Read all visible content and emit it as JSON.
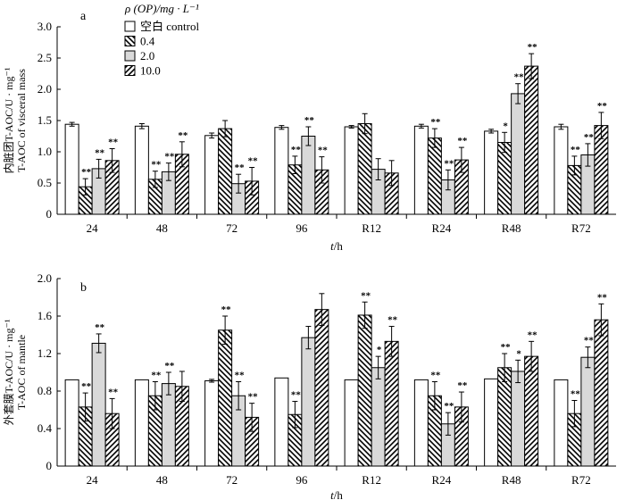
{
  "legend": {
    "title": "ρ (OP)/mg · L⁻¹",
    "items": [
      {
        "label": "空白 control",
        "pattern": "white"
      },
      {
        "label": "0.4",
        "pattern": "hatch-back"
      },
      {
        "label": "2.0",
        "pattern": "gray"
      },
      {
        "label": "10.0",
        "pattern": "hatch-fwd"
      }
    ]
  },
  "xlabel": "t/h",
  "colors": {
    "gray_fill": "#d9d9d9",
    "stroke": "#000000",
    "background": "#ffffff"
  },
  "chart_data": [
    {
      "type": "bar",
      "panel": "a",
      "ylabel_line1": "内脏团T-AOC/U · mg⁻¹",
      "ylabel_line2": "T-AOC of visceral mass",
      "xlabel": "t/h",
      "categories": [
        "24",
        "48",
        "72",
        "96",
        "R12",
        "R24",
        "R48",
        "R72"
      ],
      "ylim": [
        0,
        3.0
      ],
      "yticks": [
        "0",
        "0.5",
        "1.0",
        "1.5",
        "2.0",
        "2.5",
        "3.0"
      ],
      "series": [
        {
          "name": "空白 control",
          "values": [
            1.44,
            1.41,
            1.26,
            1.39,
            1.4,
            1.41,
            1.33,
            1.4
          ],
          "errors": [
            0.03,
            0.04,
            0.04,
            0.03,
            0.02,
            0.03,
            0.03,
            0.04
          ],
          "sig": [
            "",
            "",
            "",
            "",
            "",
            "",
            "",
            ""
          ]
        },
        {
          "name": "0.4",
          "values": [
            0.44,
            0.56,
            1.37,
            0.79,
            1.45,
            1.22,
            1.15,
            0.78
          ],
          "errors": [
            0.13,
            0.13,
            0.13,
            0.14,
            0.16,
            0.15,
            0.16,
            0.15
          ],
          "sig": [
            "**",
            "**",
            "",
            "**",
            "",
            "**",
            "*",
            "**"
          ]
        },
        {
          "name": "2.0",
          "values": [
            0.73,
            0.68,
            0.49,
            1.25,
            0.72,
            0.55,
            1.93,
            0.95
          ],
          "errors": [
            0.15,
            0.14,
            0.15,
            0.15,
            0.17,
            0.16,
            0.16,
            0.18
          ],
          "sig": [
            "**",
            "**",
            "**",
            "**",
            "",
            "**",
            "**",
            "**"
          ]
        },
        {
          "name": "10.0",
          "values": [
            0.86,
            0.96,
            0.53,
            0.71,
            0.66,
            0.87,
            2.37,
            1.42
          ],
          "errors": [
            0.19,
            0.2,
            0.22,
            0.21,
            0.2,
            0.2,
            0.2,
            0.21
          ],
          "sig": [
            "**",
            "**",
            "**",
            "**",
            "",
            "**",
            "**",
            "**"
          ]
        }
      ]
    },
    {
      "type": "bar",
      "panel": "b",
      "ylabel_line1": "外套膜T-AOC/U · mg⁻¹",
      "ylabel_line2": "T-AOC of mantle",
      "xlabel": "t/h",
      "categories": [
        "24",
        "48",
        "72",
        "96",
        "R12",
        "R24",
        "R48",
        "R72"
      ],
      "ylim": [
        0,
        2.0
      ],
      "yticks": [
        "0",
        "0.4",
        "0.8",
        "1.2",
        "1.6",
        "2.0"
      ],
      "series": [
        {
          "name": "空白 control",
          "values": [
            0.92,
            0.92,
            0.91,
            0.94,
            0.92,
            0.92,
            0.93,
            0.92
          ],
          "errors": [
            0.0,
            0.0,
            0.015,
            0.0,
            0.0,
            0.0,
            0.0,
            0.0
          ],
          "sig": [
            "",
            "",
            "",
            "",
            "",
            "",
            "",
            ""
          ]
        },
        {
          "name": "0.4",
          "values": [
            0.63,
            0.75,
            1.45,
            0.55,
            1.61,
            0.75,
            1.05,
            0.56
          ],
          "errors": [
            0.15,
            0.15,
            0.15,
            0.14,
            0.14,
            0.15,
            0.15,
            0.14
          ],
          "sig": [
            "**",
            "**",
            "**",
            "**",
            "**",
            "**",
            "**",
            "**"
          ]
        },
        {
          "name": "2.0",
          "values": [
            1.31,
            0.88,
            0.75,
            1.37,
            1.05,
            0.45,
            1.01,
            1.16
          ],
          "errors": [
            0.1,
            0.12,
            0.15,
            0.12,
            0.12,
            0.12,
            0.12,
            0.11
          ],
          "sig": [
            "**",
            "**",
            "**",
            "",
            "*",
            "**",
            "*",
            "**"
          ]
        },
        {
          "name": "10.0",
          "values": [
            0.56,
            0.85,
            0.52,
            1.67,
            1.33,
            0.63,
            1.17,
            1.56
          ],
          "errors": [
            0.16,
            0.16,
            0.15,
            0.17,
            0.16,
            0.16,
            0.16,
            0.17
          ],
          "sig": [
            "**",
            "",
            "**",
            "",
            "**",
            "**",
            "**",
            "**"
          ]
        }
      ]
    }
  ]
}
